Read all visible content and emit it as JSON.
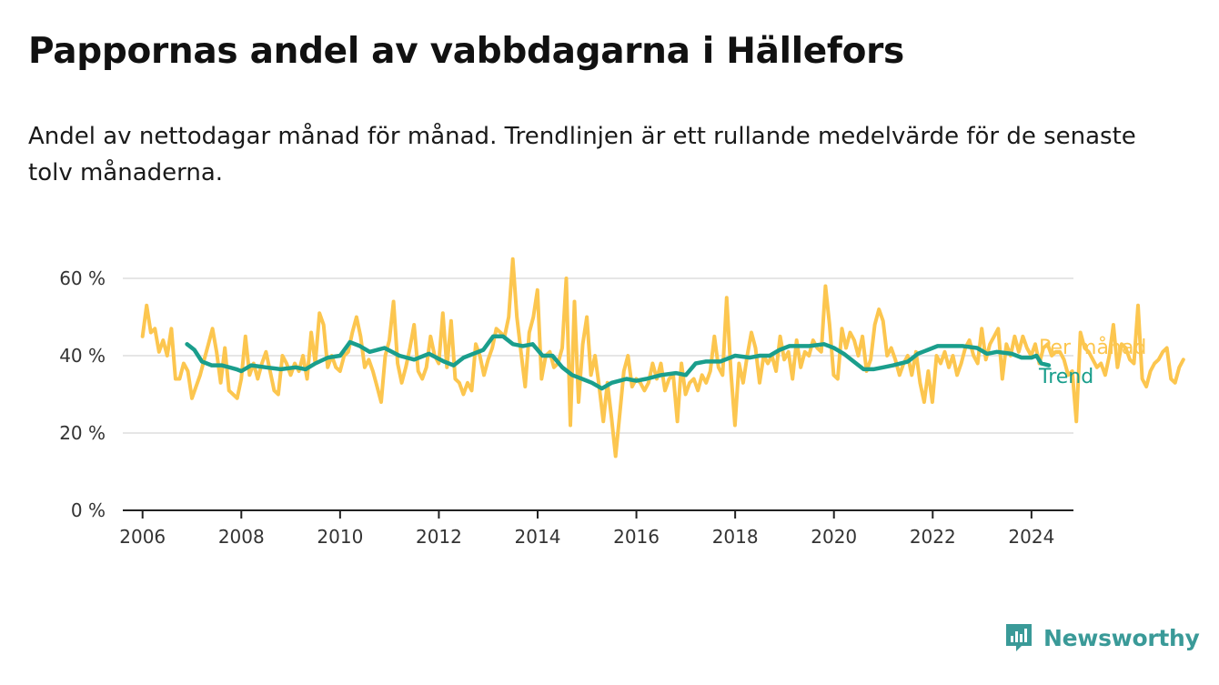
{
  "title": "Pappornas andel av vabbdagarna i Hällefors",
  "subtitle": "Andel av nettodagar månad för månad. Trendlinjen är ett rullande medelvärde för de senaste tolv månaderna.",
  "brand": "Newsworthy",
  "colors": {
    "monthly": "#fcc64f",
    "trend": "#1a9e8c",
    "logo": "#3a9a98",
    "grid": "#dddddd",
    "axis": "#222222"
  },
  "chart_data": {
    "type": "line",
    "xlim": [
      2005.6,
      2024.85
    ],
    "ylim": [
      0,
      60
    ],
    "x_ticks": [
      2006,
      2008,
      2010,
      2012,
      2014,
      2016,
      2018,
      2020,
      2022,
      2024
    ],
    "y_ticks": [
      {
        "value": 0,
        "label": "0 %"
      },
      {
        "value": 20,
        "label": "20 %"
      },
      {
        "value": 40,
        "label": "40 %"
      },
      {
        "value": 60,
        "label": "60 %"
      }
    ],
    "grid": true,
    "legend_placement": "right, at line ends",
    "series": [
      {
        "name": "Per månad",
        "x_start": 2006.0,
        "step": 0.0833,
        "values": [
          45,
          53,
          46,
          47,
          41,
          44,
          40,
          47,
          34,
          34,
          38,
          36,
          29,
          32,
          35,
          39,
          43,
          47,
          41,
          33,
          42,
          31,
          30,
          29,
          34,
          45,
          35,
          38,
          34,
          38,
          41,
          36,
          31,
          30,
          40,
          38,
          35,
          38,
          36,
          40,
          34,
          46,
          38,
          51,
          48,
          37,
          40,
          37,
          36,
          40,
          41,
          46,
          50,
          45,
          37,
          39,
          36,
          32,
          28,
          40,
          44,
          54,
          38,
          33,
          37,
          42,
          48,
          36,
          34,
          37,
          45,
          40,
          38,
          51,
          37,
          49,
          34,
          33,
          30,
          33,
          31,
          43,
          40,
          35,
          39,
          42,
          47,
          46,
          45,
          50,
          65,
          50,
          41,
          32,
          46,
          50,
          57,
          34,
          40,
          41,
          37,
          38,
          42,
          60,
          22,
          54,
          28,
          43,
          50,
          35,
          40,
          32,
          23,
          33,
          24,
          14,
          25,
          36,
          40,
          32,
          34,
          33,
          31,
          33,
          38,
          34,
          38,
          31,
          34,
          35,
          23,
          38,
          30,
          33,
          34,
          31,
          35,
          33,
          36,
          45,
          37,
          35,
          55,
          36,
          22,
          38,
          33,
          40,
          46,
          42,
          33,
          40,
          38,
          40,
          36,
          45,
          39,
          41,
          34,
          44,
          37,
          41,
          40,
          44,
          42,
          41,
          58,
          48,
          35,
          34,
          47,
          42,
          46,
          44,
          40,
          45,
          36,
          39,
          48,
          52,
          49,
          40,
          42,
          39,
          35,
          38,
          40,
          35,
          41,
          33,
          28,
          36,
          28,
          40,
          38,
          41,
          37,
          40,
          35,
          38,
          42,
          44,
          40,
          38,
          47,
          39,
          43,
          45,
          47,
          34,
          43,
          40,
          45,
          41,
          45,
          42,
          40,
          43,
          38,
          42,
          43,
          40,
          41,
          41,
          39,
          35,
          36,
          23,
          46,
          42,
          41,
          39,
          37,
          38,
          35,
          40,
          48,
          37,
          43,
          42,
          39,
          38,
          53,
          34,
          32,
          36,
          38,
          39,
          41,
          42,
          34,
          33,
          37,
          39
        ]
      },
      {
        "name": "Trend",
        "points": [
          [
            2006.9,
            43
          ],
          [
            2007.05,
            41.5
          ],
          [
            2007.2,
            38.5
          ],
          [
            2007.4,
            37.5
          ],
          [
            2007.6,
            37.5
          ],
          [
            2007.9,
            36.5
          ],
          [
            2008.0,
            36
          ],
          [
            2008.2,
            37.5
          ],
          [
            2008.5,
            37
          ],
          [
            2008.8,
            36.5
          ],
          [
            2009.1,
            37
          ],
          [
            2009.3,
            36.5
          ],
          [
            2009.5,
            38
          ],
          [
            2009.75,
            39.5
          ],
          [
            2010.0,
            40
          ],
          [
            2010.2,
            43.5
          ],
          [
            2010.4,
            42.5
          ],
          [
            2010.6,
            41
          ],
          [
            2010.9,
            42
          ],
          [
            2011.2,
            40
          ],
          [
            2011.5,
            39
          ],
          [
            2011.8,
            40.5
          ],
          [
            2012.1,
            38.5
          ],
          [
            2012.3,
            37.5
          ],
          [
            2012.5,
            39.5
          ],
          [
            2012.7,
            40.5
          ],
          [
            2012.9,
            41.5
          ],
          [
            2013.1,
            45
          ],
          [
            2013.3,
            45
          ],
          [
            2013.5,
            43
          ],
          [
            2013.7,
            42.5
          ],
          [
            2013.9,
            43
          ],
          [
            2014.1,
            40
          ],
          [
            2014.3,
            40
          ],
          [
            2014.5,
            37
          ],
          [
            2014.7,
            35
          ],
          [
            2014.9,
            34
          ],
          [
            2015.1,
            33
          ],
          [
            2015.3,
            31.5
          ],
          [
            2015.5,
            33
          ],
          [
            2015.8,
            34
          ],
          [
            2016.0,
            33.5
          ],
          [
            2016.2,
            34
          ],
          [
            2016.5,
            35
          ],
          [
            2016.8,
            35.5
          ],
          [
            2017.0,
            35
          ],
          [
            2017.2,
            38
          ],
          [
            2017.4,
            38.5
          ],
          [
            2017.7,
            38.5
          ],
          [
            2018.0,
            40
          ],
          [
            2018.3,
            39.5
          ],
          [
            2018.5,
            40
          ],
          [
            2018.7,
            40
          ],
          [
            2018.9,
            41.5
          ],
          [
            2019.1,
            42.5
          ],
          [
            2019.3,
            42.5
          ],
          [
            2019.5,
            42.5
          ],
          [
            2019.8,
            43
          ],
          [
            2020.0,
            42
          ],
          [
            2020.2,
            40.5
          ],
          [
            2020.4,
            38.5
          ],
          [
            2020.6,
            36.5
          ],
          [
            2020.8,
            36.5
          ],
          [
            2021.0,
            37
          ],
          [
            2021.2,
            37.5
          ],
          [
            2021.5,
            38.5
          ],
          [
            2021.7,
            40.5
          ],
          [
            2021.9,
            41.5
          ],
          [
            2022.1,
            42.5
          ],
          [
            2022.3,
            42.5
          ],
          [
            2022.6,
            42.5
          ],
          [
            2022.9,
            42
          ],
          [
            2023.1,
            40.5
          ],
          [
            2023.3,
            41
          ],
          [
            2023.6,
            40.5
          ],
          [
            2023.8,
            39.5
          ],
          [
            2024.0,
            39.5
          ],
          [
            2024.1,
            40
          ],
          [
            2024.2,
            38
          ],
          [
            2024.35,
            37.5
          ]
        ]
      }
    ]
  }
}
